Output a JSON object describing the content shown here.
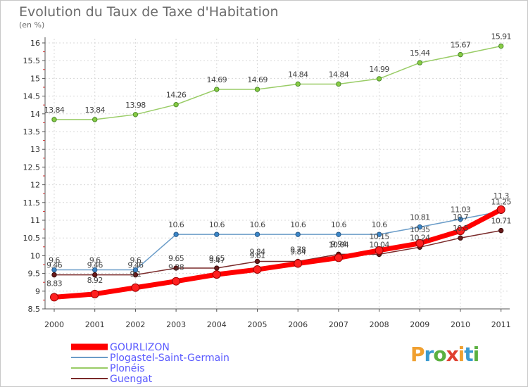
{
  "title": "Evolution du Taux de Taxe d'Habitation",
  "subtitle": "(en %)",
  "brand": {
    "letters": [
      "P",
      "r",
      "o",
      "x",
      "i",
      "t",
      "i"
    ],
    "colors": [
      "#f0a030",
      "#3a9ad0",
      "#5ab040",
      "#e04030",
      "#f0a030",
      "#3a9ad0",
      "#5ab040"
    ]
  },
  "chart_data": {
    "type": "line",
    "x": [
      "2000",
      "2001",
      "2002",
      "2003",
      "2004",
      "2005",
      "2006",
      "2007",
      "2008",
      "2009",
      "2010",
      "2011"
    ],
    "yticks": [
      "8.5",
      "9",
      "9.5",
      "10",
      "10.5",
      "11",
      "11.5",
      "12",
      "12.5",
      "13",
      "13.5",
      "14",
      "14.5",
      "15",
      "15.5",
      "16"
    ],
    "ylim": [
      8.5,
      16
    ],
    "legend_position": "bottom-left",
    "series": [
      {
        "name": "GOURLIZON",
        "color": "#ff0000",
        "values": [
          8.83,
          8.92,
          9.1,
          9.28,
          9.47,
          9.61,
          9.78,
          9.94,
          10.15,
          10.35,
          10.7,
          11.3
        ],
        "labels": [
          "8.83",
          "8.92",
          "9.1",
          "9.28",
          "9.47",
          "9.61",
          "9.78",
          "9.94",
          "10.15",
          "10.35",
          "10.7",
          "11.3"
        ]
      },
      {
        "name": "Plogastel-Saint-Germain",
        "color": "#6a9cc8",
        "values": [
          9.6,
          9.6,
          9.6,
          10.6,
          10.6,
          10.6,
          10.6,
          10.6,
          10.6,
          10.81,
          11.03,
          11.25
        ],
        "labels": [
          "9.6",
          "9.6",
          "9.6",
          "10.6",
          "10.6",
          "10.6",
          "10.6",
          "10.6",
          "10.6",
          "10.81",
          "11.03",
          "11.25"
        ]
      },
      {
        "name": "Plonéis",
        "color": "#99cc66",
        "values": [
          13.84,
          13.84,
          13.98,
          14.26,
          14.69,
          14.69,
          14.84,
          14.84,
          14.99,
          15.44,
          15.67,
          15.91
        ],
        "labels": [
          "13.84",
          "13.84",
          "13.98",
          "14.26",
          "14.69",
          "14.69",
          "14.84",
          "14.84",
          "14.99",
          "15.44",
          "15.67",
          "15.91"
        ]
      },
      {
        "name": "Guengat",
        "color": "#7a2a2a",
        "values": [
          9.46,
          9.46,
          9.46,
          9.65,
          9.65,
          9.84,
          9.84,
          10.04,
          10.04,
          10.24,
          10.5,
          10.71
        ],
        "labels": [
          "9.46",
          "9.46",
          "9.46",
          "9.65",
          "9.65",
          "9.84",
          "9.84",
          "10.04",
          "10.04",
          "10.24",
          "10.5",
          "10.71"
        ]
      }
    ]
  }
}
